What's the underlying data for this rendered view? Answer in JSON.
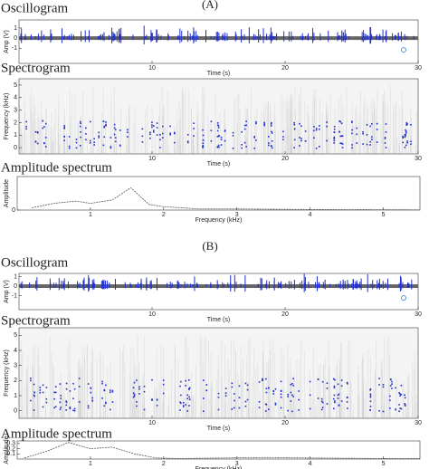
{
  "panel_labels": [
    "(A)",
    "(B)"
  ],
  "chart_data": [
    {
      "type": "oscillogram",
      "title": "Oscillogram",
      "xlabel": "Time (s)",
      "ylabel": "Amp (V)",
      "xlim": [
        0,
        30
      ],
      "xticks": [
        10,
        20,
        30
      ],
      "ylim": [
        -2.5,
        1.8
      ],
      "yticks": [
        -1,
        0,
        1
      ],
      "color": "#1f2fd0"
    },
    {
      "type": "spectrogram",
      "title": "Spectrogram",
      "xlabel": "Time (s)",
      "ylabel": "Frequency (kHz)",
      "xlim": [
        0,
        30
      ],
      "xticks": [
        10,
        20,
        30
      ],
      "ylim": [
        -0.5,
        5.5
      ],
      "yticks": [
        0,
        1,
        2,
        3,
        4,
        5
      ],
      "color": "#1f2fd0"
    },
    {
      "type": "line",
      "title": "Amplitude spectrum",
      "xlabel": "Frequency (kHz)",
      "ylabel": "Amplitude",
      "xlim": [
        0,
        5.5
      ],
      "xticks": [
        1,
        2,
        3,
        4,
        5
      ],
      "ylim": [
        0,
        0.3
      ],
      "yticks": [
        0
      ],
      "x": [
        0.2,
        0.5,
        0.8,
        1.0,
        1.3,
        1.55,
        1.8,
        2.0,
        2.5,
        3.0,
        4.0,
        5.0,
        5.5
      ],
      "values": [
        0.02,
        0.06,
        0.08,
        0.06,
        0.09,
        0.2,
        0.05,
        0.03,
        0.01,
        0.01,
        0.005,
        0.003,
        0.002
      ],
      "color": "#555555"
    },
    {
      "type": "oscillogram",
      "title": "Oscillogram",
      "xlabel": "Time (s)",
      "ylabel": "Amp (V)",
      "xlim": [
        0,
        30
      ],
      "xticks": [
        10,
        20,
        30
      ],
      "ylim": [
        -2.5,
        1.35
      ],
      "yticks": [
        -1,
        0,
        1
      ],
      "color": "#1f2fd0"
    },
    {
      "type": "spectrogram",
      "title": "Spectrogram",
      "xlabel": "Time (s)",
      "ylabel": "Frequency (kHz)",
      "xlim": [
        0,
        30
      ],
      "xticks": [
        10,
        20,
        30
      ],
      "ylim": [
        -0.5,
        5.5
      ],
      "yticks": [
        0,
        1,
        2,
        3,
        4,
        5
      ],
      "color": "#1f2fd0"
    },
    {
      "type": "line",
      "title": "Amplitude spectrum",
      "xlabel": "Frequency (kHz)",
      "ylabel": "Amplitude",
      "xlim": [
        0,
        5.5
      ],
      "xticks": [
        1,
        2,
        3,
        4,
        5
      ],
      "ylim": [
        0,
        0.35
      ],
      "yticks": [
        0.1,
        0.2,
        0.3
      ],
      "x": [
        0.1,
        0.4,
        0.7,
        1.0,
        1.3,
        1.6,
        1.9,
        2.2,
        2.8,
        3.4,
        4.0,
        5.0,
        5.5
      ],
      "values": [
        0.02,
        0.15,
        0.32,
        0.2,
        0.23,
        0.1,
        0.02,
        0.01,
        0.02,
        0.03,
        0.02,
        0.01,
        0.01
      ],
      "color": "#555555"
    }
  ]
}
